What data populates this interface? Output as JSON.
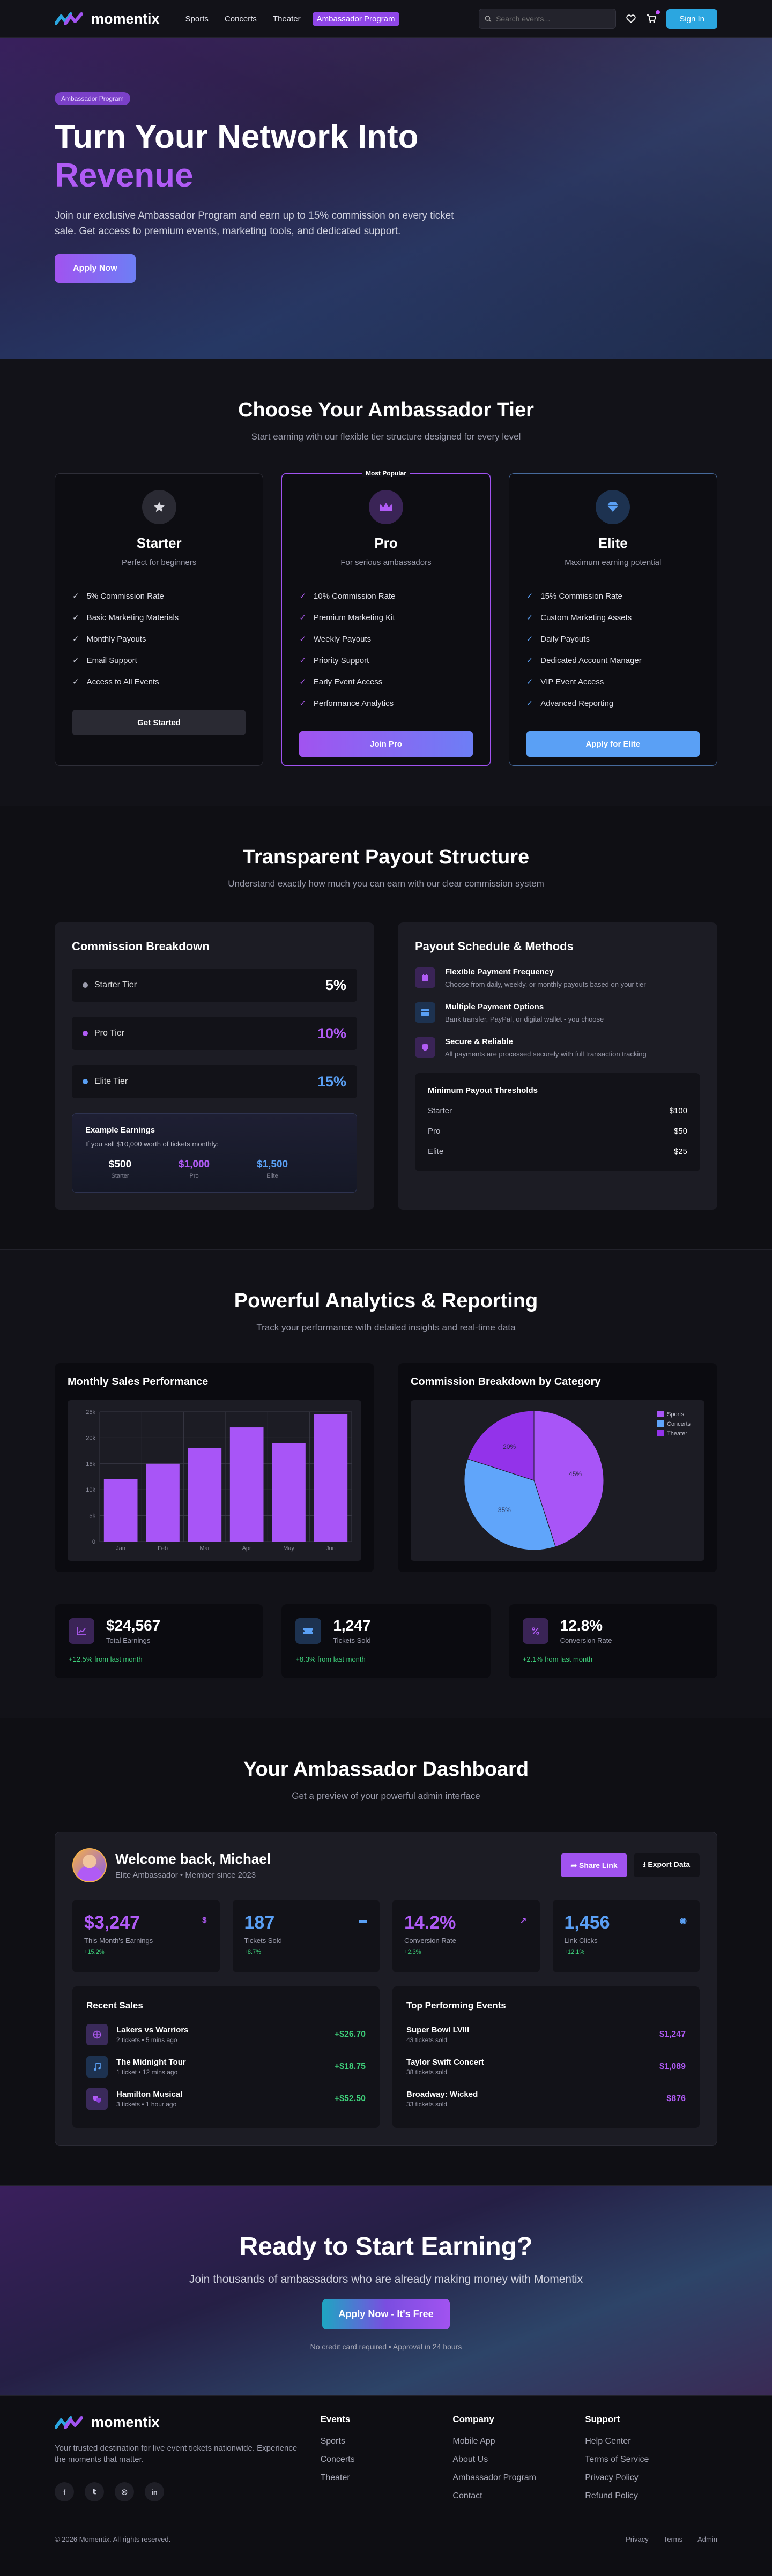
{
  "brand": {
    "name": "momentix"
  },
  "nav": {
    "links": [
      "Sports",
      "Concerts",
      "Theater",
      "Ambassador Program"
    ],
    "search_placeholder": "Search events...",
    "signin": "Sign In"
  },
  "hero": {
    "pill": "Ambassador Program",
    "title_line1": "Turn Your Network Into",
    "title_line2": "Revenue",
    "description": "Join our exclusive Ambassador Program and earn up to 15% commission on every ticket sale. Get access to premium events, marketing tools, and dedicated support.",
    "cta": "Apply Now"
  },
  "tiers_section": {
    "title": "Choose Your Ambassador Tier",
    "subtitle": "Start earning with our flexible tier structure designed for every level",
    "tiers": [
      {
        "name": "Starter",
        "tagline": "Perfect for beginners",
        "icon": "star-icon",
        "features": [
          "5% Commission Rate",
          "Basic Marketing Materials",
          "Monthly Payouts",
          "Email Support",
          "Access to All Events"
        ],
        "button": "Get Started"
      },
      {
        "name": "Pro",
        "tagline": "For serious ambassadors",
        "icon": "crown-icon",
        "badge": "Most Popular",
        "features": [
          "10% Commission Rate",
          "Premium Marketing Kit",
          "Weekly Payouts",
          "Priority Support",
          "Early Event Access",
          "Performance Analytics"
        ],
        "button": "Join Pro"
      },
      {
        "name": "Elite",
        "tagline": "Maximum earning potential",
        "icon": "gem-icon",
        "features": [
          "15% Commission Rate",
          "Custom Marketing Assets",
          "Daily Payouts",
          "Dedicated Account Manager",
          "VIP Event Access",
          "Advanced Reporting"
        ],
        "button": "Apply for Elite"
      }
    ]
  },
  "payout": {
    "title": "Transparent Payout Structure",
    "subtitle": "Understand exactly how much you can earn with our clear commission system",
    "breakdown_title": "Commission Breakdown",
    "rates": [
      {
        "label": "Starter Tier",
        "value": "5%",
        "color": "#9b9cac"
      },
      {
        "label": "Pro Tier",
        "value": "10%",
        "color": "#b05bf5"
      },
      {
        "label": "Elite Tier",
        "value": "15%",
        "color": "#5aa0f5"
      }
    ],
    "example_title": "Example Earnings",
    "example_desc": "If you sell $10,000 worth of tickets monthly:",
    "example_values": [
      {
        "value": "$500",
        "label": "Starter",
        "color": "#ffffff"
      },
      {
        "value": "$1,000",
        "label": "Pro",
        "color": "#b05bf5"
      },
      {
        "value": "$1,500",
        "label": "Elite",
        "color": "#5aa0f5"
      }
    ],
    "schedule_title": "Payout Schedule & Methods",
    "methods": [
      {
        "title": "Flexible Payment Frequency",
        "desc": "Choose from daily, weekly, or monthly payouts based on your tier",
        "icon": "calendar-icon"
      },
      {
        "title": "Multiple Payment Options",
        "desc": "Bank transfer, PayPal, or digital wallet - you choose",
        "icon": "card-icon"
      },
      {
        "title": "Secure & Reliable",
        "desc": "All payments are processed securely with full transaction tracking",
        "icon": "shield-icon"
      }
    ],
    "thresholds_title": "Minimum Payout Thresholds",
    "thresholds": [
      {
        "tier": "Starter",
        "amount": "$100"
      },
      {
        "tier": "Pro",
        "amount": "$50"
      },
      {
        "tier": "Elite",
        "amount": "$25"
      }
    ]
  },
  "analytics": {
    "title": "Powerful Analytics & Reporting",
    "subtitle": "Track your performance with detailed insights and real-time data",
    "bar_title": "Monthly Sales Performance",
    "pie_title": "Commission Breakdown by Category",
    "stats": [
      {
        "value": "$24,567",
        "label": "Total Earnings",
        "change": "+12.5% from last month",
        "icon": "chart-icon"
      },
      {
        "value": "1,247",
        "label": "Tickets Sold",
        "change": "+8.3% from last month",
        "icon": "ticket-icon"
      },
      {
        "value": "12.8%",
        "label": "Conversion Rate",
        "change": "+2.1% from last month",
        "icon": "percent-icon"
      }
    ]
  },
  "chart_data": [
    {
      "type": "bar",
      "title": "Monthly Sales Performance",
      "categories": [
        "Jan",
        "Feb",
        "Mar",
        "Apr",
        "May",
        "Jun"
      ],
      "values": [
        12000,
        15000,
        18000,
        22000,
        19000,
        24500
      ],
      "ytick_labels": [
        "0",
        "5k",
        "10k",
        "15k",
        "20k",
        "25k"
      ],
      "ylim": [
        0,
        25000
      ],
      "grid": true,
      "color": "#a855f7"
    },
    {
      "type": "pie",
      "title": "Commission Breakdown by Category",
      "categories": [
        "Sports",
        "Concerts",
        "Theater"
      ],
      "values": [
        45,
        35,
        20
      ],
      "labels": [
        "45%",
        "35%",
        "20%"
      ],
      "colors": [
        "#a855f7",
        "#60a5fa",
        "#9333ea"
      ],
      "legend": "top-right"
    }
  ],
  "dashboard": {
    "title": "Your Ambassador Dashboard",
    "subtitle": "Get a preview of your powerful admin interface",
    "welcome": "Welcome back, Michael",
    "meta": "Elite Ambassador • Member since 2023",
    "share": "Share Link",
    "export": "Export Data",
    "kpis": [
      {
        "value": "$3,247",
        "label": "This Month's Earnings",
        "change": "+15.2%",
        "color": "#b05bf5",
        "glyph": "$"
      },
      {
        "value": "187",
        "label": "Tickets Sold",
        "change": "+8.7%",
        "color": "#5aa0f5",
        "glyph": "▬"
      },
      {
        "value": "14.2%",
        "label": "Conversion Rate",
        "change": "+2.3%",
        "color": "#b05bf5",
        "glyph": "↗"
      },
      {
        "value": "1,456",
        "label": "Link Clicks",
        "change": "+12.1%",
        "color": "#5aa0f5",
        "glyph": "◉"
      }
    ],
    "recent_title": "Recent Sales",
    "sales": [
      {
        "title": "Lakers vs Warriors",
        "sub": "2 tickets • 5 mins ago",
        "amount": "+$26.70",
        "icon": "basketball-icon"
      },
      {
        "title": "The Midnight Tour",
        "sub": "1 ticket • 12 mins ago",
        "amount": "+$18.75",
        "icon": "music-icon"
      },
      {
        "title": "Hamilton Musical",
        "sub": "3 tickets • 1 hour ago",
        "amount": "+$52.50",
        "icon": "theater-icon"
      }
    ],
    "top_title": "Top Performing Events",
    "top_events": [
      {
        "title": "Super Bowl LVIII",
        "sub": "43 tickets sold",
        "amount": "$1,247"
      },
      {
        "title": "Taylor Swift Concert",
        "sub": "38 tickets sold",
        "amount": "$1,089"
      },
      {
        "title": "Broadway: Wicked",
        "sub": "33 tickets sold",
        "amount": "$876"
      }
    ]
  },
  "cta": {
    "title": "Ready to Start Earning?",
    "subtitle": "Join thousands of ambassadors who are already making money with Momentix",
    "button": "Apply Now - It's Free",
    "fine": "No credit card required • Approval in 24 hours"
  },
  "footer": {
    "tagline": "Your trusted destination for live event tickets nationwide. Experience the moments that matter.",
    "columns": [
      {
        "title": "Events",
        "links": [
          "Sports",
          "Concerts",
          "Theater"
        ]
      },
      {
        "title": "Company",
        "links": [
          "Mobile App",
          "About Us",
          "Ambassador Program",
          "Contact"
        ]
      },
      {
        "title": "Support",
        "links": [
          "Help Center",
          "Terms of Service",
          "Privacy Policy",
          "Refund Policy"
        ]
      }
    ],
    "copyright": "© 2026 Momentix. All rights reserved.",
    "bottom_links": [
      "Privacy",
      "Terms",
      "Admin"
    ]
  }
}
